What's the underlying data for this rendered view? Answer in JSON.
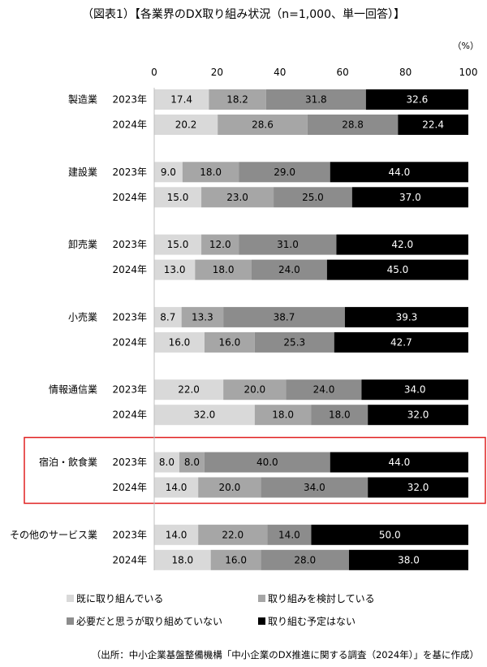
{
  "chart_data": {
    "type": "bar",
    "orientation": "horizontal",
    "stacked": true,
    "title": "（図表1）【各業界のDX取り組み状況（n=1,000、単一回答）】",
    "unit_label": "（%）",
    "xlim": [
      0,
      100
    ],
    "x_ticks": [
      "0",
      "20",
      "40",
      "60",
      "80",
      "100"
    ],
    "grid": false,
    "legend_position": "bottom",
    "series": [
      {
        "name": "既に取り組んでいる",
        "color": "#d9d9d9"
      },
      {
        "name": "取り組みを検討している",
        "color": "#a6a6a6"
      },
      {
        "name": "必要だと思うが取り組めていない",
        "color": "#8c8c8c"
      },
      {
        "name": "取り組む予定はない",
        "color": "#000000"
      }
    ],
    "groups": [
      {
        "industry": "製造業",
        "rows": [
          {
            "year": "2023年",
            "values": [
              17.4,
              18.2,
              31.8,
              32.6
            ]
          },
          {
            "year": "2024年",
            "values": [
              20.2,
              28.6,
              28.8,
              22.4
            ]
          }
        ]
      },
      {
        "industry": "建設業",
        "rows": [
          {
            "year": "2023年",
            "values": [
              9.0,
              18.0,
              29.0,
              44.0
            ]
          },
          {
            "year": "2024年",
            "values": [
              15.0,
              23.0,
              25.0,
              37.0
            ]
          }
        ]
      },
      {
        "industry": "卸売業",
        "rows": [
          {
            "year": "2023年",
            "values": [
              15.0,
              12.0,
              31.0,
              42.0
            ]
          },
          {
            "year": "2024年",
            "values": [
              13.0,
              18.0,
              24.0,
              45.0
            ]
          }
        ]
      },
      {
        "industry": "小売業",
        "rows": [
          {
            "year": "2023年",
            "values": [
              8.7,
              13.3,
              38.7,
              39.3
            ]
          },
          {
            "year": "2024年",
            "values": [
              16.0,
              16.0,
              25.3,
              42.7
            ]
          }
        ]
      },
      {
        "industry": "情報通信業",
        "rows": [
          {
            "year": "2023年",
            "values": [
              22.0,
              20.0,
              24.0,
              34.0
            ]
          },
          {
            "year": "2024年",
            "values": [
              32.0,
              18.0,
              18.0,
              32.0
            ]
          }
        ]
      },
      {
        "industry": "宿泊・飲食業",
        "highlighted": true,
        "rows": [
          {
            "year": "2023年",
            "values": [
              8.0,
              8.0,
              40.0,
              44.0
            ]
          },
          {
            "year": "2024年",
            "values": [
              14.0,
              20.0,
              34.0,
              32.0
            ]
          }
        ]
      },
      {
        "industry": "その他のサービス業",
        "rows": [
          {
            "year": "2023年",
            "values": [
              14.0,
              22.0,
              14.0,
              50.0
            ]
          },
          {
            "year": "2024年",
            "values": [
              18.0,
              16.0,
              28.0,
              38.0
            ]
          }
        ]
      }
    ],
    "highlight_color": "#e02020",
    "source": "（出所：中小企業基盤整備機構「中小企業のDX推進に関する調査（2024年）」を基に作成）"
  }
}
